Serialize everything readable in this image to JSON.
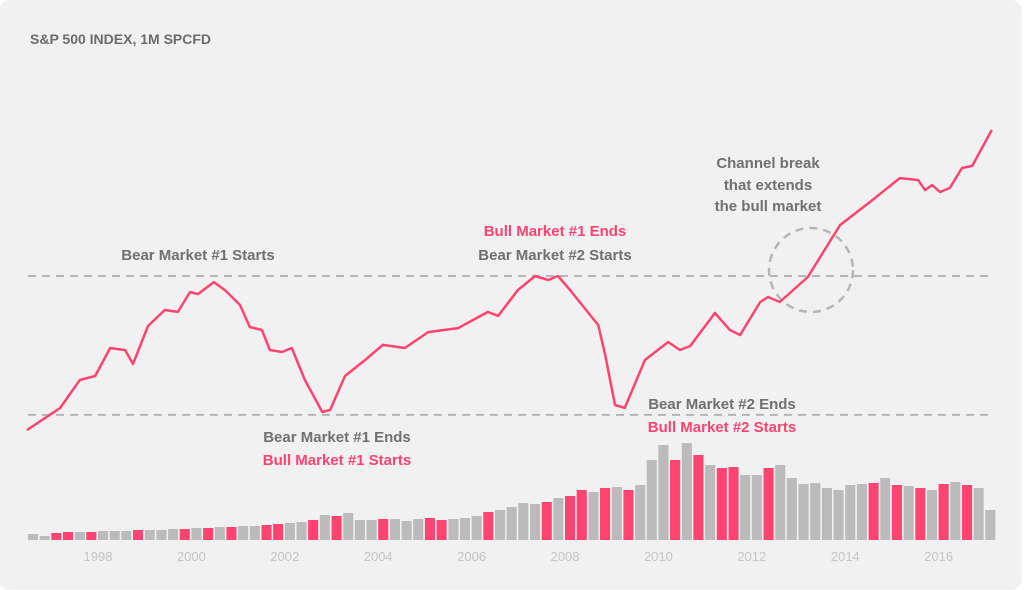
{
  "chart_data": {
    "type": "line",
    "title": "S&P 500 INDEX, 1M SPCFD",
    "xlabel": "",
    "ylabel": "",
    "x_ticks": [
      "1998",
      "2000",
      "2002",
      "2004",
      "2006",
      "2008",
      "2010",
      "2012",
      "2014",
      "2016"
    ],
    "xlim": [
      1996.5,
      2017.2
    ],
    "grid": false,
    "colors": {
      "line": "#ff4471",
      "volume": "#bbbbbb",
      "volume_highlight": "#ff4471",
      "reference": "#b5b5b5",
      "background": "#f1f1f1",
      "annotation": "#707070"
    },
    "series": [
      {
        "x": [
          1996.48,
          1997.19,
          1997.61,
          1997.94,
          1998.26,
          1998.58,
          1998.75,
          1999.07,
          1999.43,
          1999.71,
          1999.97,
          2000.14,
          2000.48,
          2000.72,
          2001.04,
          2001.25,
          2001.51,
          2001.68,
          2001.94,
          2002.15,
          2002.43,
          2002.8,
          2002.97,
          2003.29,
          2003.72,
          2004.1,
          2004.57,
          2005.07,
          2005.71,
          2006.35,
          2006.57,
          2006.99,
          2007.36,
          2007.64,
          2007.85,
          2008.11,
          2008.71,
          2008.86,
          2009.07,
          2009.28,
          2009.71,
          2010.21,
          2010.46,
          2010.68,
          2011.21,
          2011.53,
          2011.75,
          2012.18,
          2012.35,
          2012.6,
          2013.2,
          2013.89,
          2014.53,
          2015.17,
          2015.56,
          2015.71,
          2015.86,
          2016.03,
          2016.24,
          2016.5,
          2016.72,
          2017.14
        ],
        "y": [
          663,
          790,
          951,
          974,
          1135,
          1124,
          1043,
          1262,
          1354,
          1343,
          1458,
          1446,
          1515,
          1469,
          1383,
          1256,
          1239,
          1124,
          1112,
          1135,
          951,
          767,
          778,
          974,
          1066,
          1153,
          1135,
          1227,
          1250,
          1343,
          1320,
          1469,
          1550,
          1527,
          1550,
          1469,
          1268,
          1095,
          807,
          790,
          1066,
          1170,
          1124,
          1147,
          1337,
          1239,
          1210,
          1400,
          1429,
          1400,
          1544,
          1844,
          1976,
          2114,
          2103,
          2045,
          2074,
          2034,
          2057,
          2172,
          2184,
          2391
        ]
      }
    ],
    "volume": {
      "start": 1996.5,
      "period": "quarter",
      "values": [
        6,
        4,
        7,
        8,
        8,
        8,
        9,
        9,
        9,
        10,
        10,
        10,
        11,
        11,
        12,
        12,
        13,
        13,
        14,
        14,
        15,
        16,
        17,
        18,
        20,
        25,
        24,
        27,
        20,
        20,
        21,
        21,
        19,
        21,
        22,
        20,
        21,
        22,
        24,
        28,
        30,
        33,
        37,
        36,
        38,
        42,
        44,
        50,
        48,
        52,
        53,
        50,
        55,
        80,
        95,
        80,
        97,
        85,
        75,
        72,
        73,
        65,
        65,
        72,
        75,
        62,
        56,
        57,
        52,
        50,
        55,
        56,
        57,
        62,
        55,
        54,
        52,
        50,
        56,
        58,
        55,
        52,
        30
      ],
      "highlighted": [
        2,
        3,
        5,
        9,
        13,
        15,
        17,
        20,
        21,
        24,
        26,
        30,
        34,
        35,
        39,
        44,
        46,
        47,
        49,
        51,
        55,
        57,
        59,
        60,
        63,
        72,
        74,
        76,
        78,
        80
      ]
    },
    "reference_levels": [
      1550,
      750
    ],
    "annotations": {
      "bear1_start": "Bear Market #1 Starts",
      "bull1_end": "Bull Market #1 Ends",
      "bear2_start": "Bear Market #2 Starts",
      "bear1_end": "Bear Market #1 Ends",
      "bull1_start": "Bull Market #1 Starts",
      "bear2_end": "Bear Market #2 Ends",
      "bull2_start": "Bull Market #2 Starts",
      "channel_1": "Channel break",
      "channel_2": "that extends",
      "channel_3": "the bull market"
    }
  }
}
